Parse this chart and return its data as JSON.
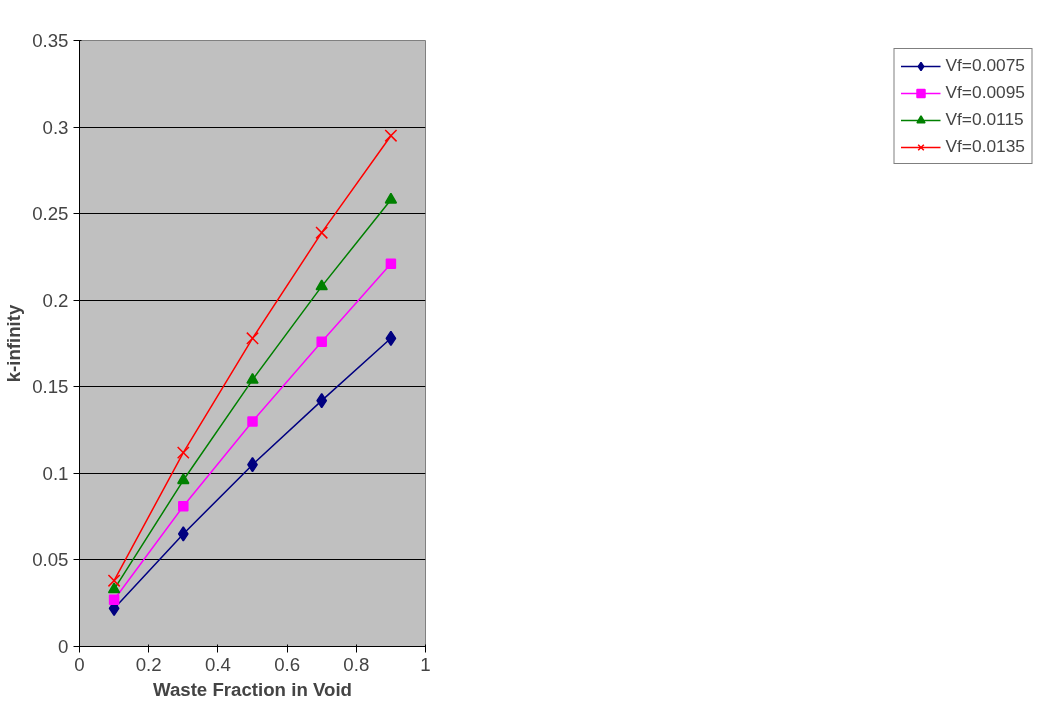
{
  "chart_data": {
    "type": "line",
    "xlabel": "Waste Fraction in Void",
    "ylabel": "k-infinity",
    "x": [
      0.1,
      0.3,
      0.5,
      0.7,
      0.9
    ],
    "series": [
      {
        "name": "Vf=0.0075",
        "color": "#000080",
        "marker": "diamond",
        "values": [
          0.022,
          0.065,
          0.105,
          0.142,
          0.178
        ]
      },
      {
        "name": "Vf=0.0095",
        "color": "#ff00ff",
        "marker": "square",
        "values": [
          0.027,
          0.081,
          0.13,
          0.176,
          0.221
        ]
      },
      {
        "name": "Vf=0.0115",
        "color": "#008000",
        "marker": "triangle",
        "values": [
          0.033,
          0.096,
          0.154,
          0.208,
          0.258
        ]
      },
      {
        "name": "Vf=0.0135",
        "color": "#ff0000",
        "marker": "cross",
        "values": [
          0.038,
          0.112,
          0.178,
          0.239,
          0.295
        ]
      }
    ],
    "xlim": [
      0,
      1
    ],
    "xticks": [
      0,
      0.2,
      0.4,
      0.6,
      0.8,
      1
    ],
    "ylim": [
      0,
      0.35
    ],
    "yticks": [
      0,
      0.05,
      0.1,
      0.15,
      0.2,
      0.25,
      0.3,
      0.35
    ],
    "grid": "y",
    "legend": "right"
  }
}
